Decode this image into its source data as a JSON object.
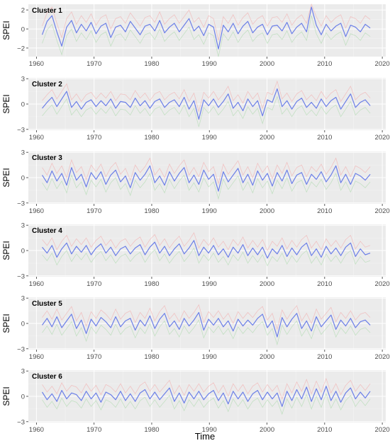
{
  "figure": {
    "xlabel": "Time",
    "ylabel": "SPEI"
  },
  "chart_data": [
    {
      "type": "line",
      "title": "Cluster 1",
      "ylabel": "SPEI",
      "xlim": [
        1958.6,
        2020.6
      ],
      "ylim": [
        -2.9,
        2.6
      ],
      "x_ticks": [
        1960,
        1970,
        1980,
        1990,
        2000,
        2010,
        2020
      ],
      "y_ticks": [
        -2,
        0,
        2
      ],
      "grid": true,
      "series": [
        {
          "values": [
            -0.6,
            0.8,
            1.4,
            -0.3,
            -1.8,
            0.2,
            0.9,
            -0.4,
            0.5,
            -0.2,
            0.7,
            -0.5,
            0.3,
            0.6,
            -0.9,
            0.2,
            0.4,
            -0.3,
            0.8,
            0.1,
            -0.6,
            0.3,
            0.5,
            -0.2,
            0.9,
            -0.4,
            0.2,
            0.6,
            -0.3,
            0.4,
            1.1,
            -0.2,
            0.3,
            -0.7,
            0.5,
            0.2,
            -2.1,
            0.4,
            -0.3,
            0.6,
            -0.5,
            0.3,
            0.8,
            -0.4,
            0.2,
            0.5,
            -0.6,
            0.3,
            0.4,
            -0.2,
            0.7,
            -0.5,
            0.2,
            0.6,
            -0.3,
            2.3,
            0.4,
            -0.6,
            0.5,
            -0.2,
            0.3,
            0.6,
            -0.8,
            0.4,
            0.2,
            -0.3,
            0.5,
            0.1
          ]
        }
      ]
    },
    {
      "type": "line",
      "title": "Cluster 2",
      "ylabel": "SPEI",
      "xlim": [
        1958.6,
        2020.6
      ],
      "ylim": [
        -3.1,
        3.1
      ],
      "x_ticks": [
        1960,
        1970,
        1980,
        1990,
        2000,
        2010,
        2020
      ],
      "y_ticks": [
        -3,
        0,
        3
      ],
      "grid": true,
      "series": [
        {
          "values": [
            -0.5,
            0.2,
            0.8,
            -0.3,
            0.6,
            1.5,
            -0.4,
            0.3,
            -0.6,
            0.2,
            0.5,
            -0.3,
            0.4,
            -0.2,
            0.6,
            -0.5,
            0.3,
            0.2,
            -0.4,
            0.7,
            -0.2,
            0.4,
            -0.5,
            0.3,
            0.6,
            -0.4,
            0.2,
            0.5,
            -0.3,
            0.8,
            -0.6,
            0.4,
            -1.8,
            0.5,
            -0.2,
            0.6,
            -0.4,
            0.3,
            1.2,
            -0.5,
            0.2,
            -0.8,
            0.6,
            -0.3,
            0.4,
            -1.4,
            0.5,
            0.2,
            1.8,
            -0.3,
            0.4,
            -0.6,
            0.3,
            0.7,
            -0.4,
            0.2,
            -0.5,
            0.6,
            -0.3,
            0.4,
            0.8,
            -0.6,
            0.3,
            1.2,
            -0.4,
            0.2,
            0.5,
            -0.2
          ]
        }
      ]
    },
    {
      "type": "line",
      "title": "Cluster 3",
      "ylabel": "SPEI",
      "xlim": [
        1958.6,
        2020.6
      ],
      "ylim": [
        -3.1,
        3.1
      ],
      "x_ticks": [
        1960,
        1970,
        1980,
        1990,
        2000,
        2010,
        2020
      ],
      "y_ticks": [
        -3,
        0,
        3
      ],
      "grid": true,
      "series": [
        {
          "values": [
            0.3,
            -0.6,
            0.8,
            -0.4,
            0.5,
            -0.9,
            1.2,
            -0.3,
            0.4,
            -1.1,
            0.6,
            -0.2,
            0.7,
            -0.8,
            0.3,
            0.9,
            -0.5,
            0.2,
            -1.2,
            0.6,
            -0.3,
            0.4,
            1.4,
            -0.6,
            0.2,
            -0.9,
            0.7,
            -0.4,
            0.5,
            1.2,
            -0.6,
            0.3,
            -0.8,
            0.9,
            -0.2,
            0.4,
            -1.6,
            0.7,
            -0.5,
            0.3,
            1.1,
            -0.6,
            0.4,
            -0.9,
            0.8,
            -0.3,
            0.5,
            -1.0,
            0.6,
            -0.4,
            0.9,
            -0.7,
            0.3,
            0.6,
            -0.8,
            0.4,
            -0.2,
            0.7,
            -0.5,
            0.3,
            1.4,
            -0.6,
            0.4,
            -0.8,
            0.5,
            0.2,
            -0.3,
            0.4
          ]
        }
      ]
    },
    {
      "type": "line",
      "title": "Cluster 4",
      "ylabel": "SPEI",
      "xlim": [
        1958.6,
        2020.6
      ],
      "ylim": [
        -3.1,
        3.1
      ],
      "x_ticks": [
        1960,
        1970,
        1980,
        1990,
        2000,
        2010,
        2020
      ],
      "y_ticks": [
        -3,
        0,
        3
      ],
      "grid": true,
      "series": [
        {
          "values": [
            0.4,
            -0.3,
            0.6,
            -0.8,
            0.2,
            0.9,
            -0.4,
            0.5,
            -0.2,
            0.6,
            -0.5,
            0.3,
            0.8,
            -0.3,
            0.4,
            -0.6,
            0.2,
            0.5,
            -0.4,
            0.3,
            0.7,
            -0.5,
            0.4,
            1.0,
            -0.3,
            0.5,
            -0.6,
            0.2,
            0.8,
            -0.4,
            0.3,
            1.2,
            -0.6,
            0.4,
            -0.3,
            0.6,
            -0.5,
            0.2,
            -0.8,
            0.4,
            -0.3,
            0.7,
            -0.6,
            0.3,
            -0.5,
            0.4,
            -0.9,
            0.2,
            -0.4,
            0.6,
            -0.7,
            0.3,
            -0.5,
            0.4,
            0.9,
            -0.6,
            0.2,
            -0.8,
            0.5,
            -0.4,
            0.3,
            -0.6,
            0.4,
            0.9,
            -0.7,
            0.2,
            -0.5,
            -0.3
          ]
        }
      ]
    },
    {
      "type": "line",
      "title": "Cluster 5",
      "ylabel": "SPEI",
      "xlim": [
        1958.6,
        2020.6
      ],
      "ylim": [
        -3.1,
        3.1
      ],
      "x_ticks": [
        1960,
        1970,
        1980,
        1990,
        2000,
        2010,
        2020
      ],
      "y_ticks": [
        -3,
        0,
        3
      ],
      "grid": true,
      "series": [
        {
          "values": [
            -0.2,
            0.6,
            -0.4,
            0.8,
            -0.5,
            0.3,
            1.1,
            -0.6,
            0.4,
            -1.2,
            0.5,
            -0.3,
            0.7,
            0.2,
            -0.5,
            0.8,
            -0.4,
            0.3,
            0.6,
            -0.8,
            0.4,
            -0.3,
            0.9,
            -0.6,
            0.5,
            1.2,
            -0.4,
            0.3,
            -0.7,
            0.6,
            -0.3,
            0.4,
            1.3,
            -0.8,
            0.5,
            -0.2,
            0.6,
            -0.4,
            0.3,
            -0.9,
            0.5,
            -0.3,
            0.4,
            -0.2,
            0.6,
            1.1,
            -0.5,
            0.3,
            -1.6,
            0.7,
            -0.4,
            0.5,
            1.2,
            -0.6,
            0.3,
            -0.9,
            0.8,
            -0.4,
            0.3,
            1.0,
            -0.7,
            0.4,
            -0.3,
            0.6,
            -0.5,
            0.2,
            0.4,
            -0.2
          ]
        }
      ]
    },
    {
      "type": "line",
      "title": "Cluster 6",
      "ylabel": "SPEI",
      "xlim": [
        1958.6,
        2020.6
      ],
      "ylim": [
        -3.1,
        3.1
      ],
      "x_ticks": [
        1960,
        1970,
        1980,
        1990,
        2000,
        2010,
        2020
      ],
      "y_ticks": [
        -3,
        0,
        3
      ],
      "grid": true,
      "series": [
        {
          "values": [
            0.5,
            -0.4,
            0.3,
            -0.6,
            0.7,
            -0.3,
            0.4,
            0.2,
            -0.5,
            0.6,
            -0.3,
            0.4,
            -0.7,
            0.5,
            0.2,
            -0.4,
            0.6,
            -0.5,
            0.3,
            -0.6,
            0.4,
            0.8,
            -0.3,
            0.5,
            -0.4,
            0.3,
            1.0,
            -0.6,
            0.4,
            -0.8,
            0.5,
            -0.3,
            0.6,
            -0.4,
            0.3,
            0.7,
            -0.5,
            0.4,
            -0.9,
            0.6,
            -0.3,
            0.5,
            -0.6,
            0.3,
            0.7,
            -0.4,
            0.5,
            -0.3,
            0.4,
            -1.2,
            0.6,
            -0.5,
            0.8,
            -0.3,
            1.1,
            -0.6,
            0.9,
            -0.4,
            1.2,
            -0.5,
            0.6,
            -0.7,
            0.4,
            1.0,
            -0.3,
            0.5,
            -0.2,
            0.6
          ]
        }
      ]
    }
  ],
  "colors": {
    "panel_bg": "#ebebeb",
    "grid_major": "#ffffff",
    "line": "#6b7fe8",
    "band_red": "#f4a6a6",
    "band_green": "#a8d8a8",
    "tick_text": "#4d4d4d"
  }
}
